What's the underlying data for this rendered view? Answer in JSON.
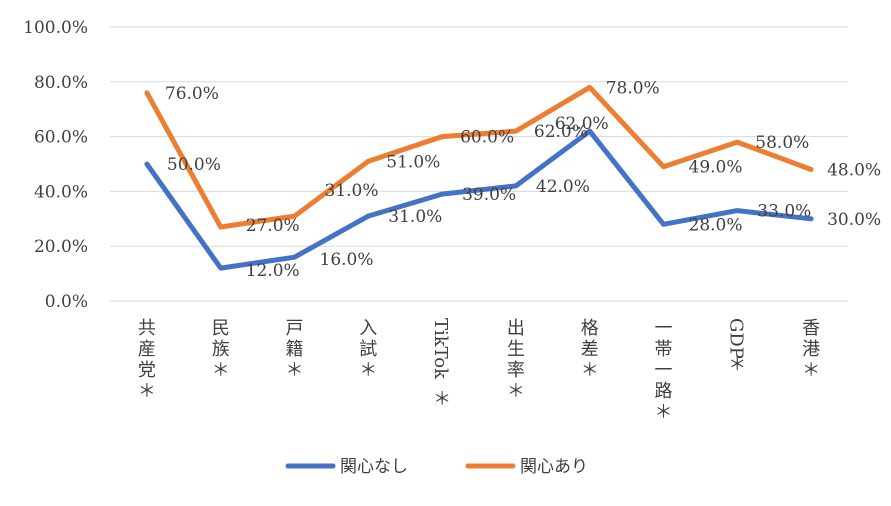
{
  "chart_data": {
    "type": "line",
    "categories": [
      "共産党＊",
      "民族＊",
      "戸籍＊",
      "入試＊",
      "TikTok＊",
      "出生率＊",
      "格差＊",
      "一帯一路＊",
      "GDP＊",
      "香港＊"
    ],
    "series": [
      {
        "name": "関心なし",
        "color": "#4472C4",
        "values": [
          50.0,
          12.0,
          16.0,
          31.0,
          39.0,
          42.0,
          62.0,
          28.0,
          33.0,
          30.0
        ]
      },
      {
        "name": "関心あり",
        "color": "#ED7D31",
        "values": [
          76.0,
          27.0,
          31.0,
          51.0,
          60.0,
          62.0,
          78.0,
          49.0,
          58.0,
          48.0
        ]
      }
    ],
    "ylim": [
      0,
      100
    ],
    "yticks": [
      "0.0%",
      "20.0%",
      "40.0%",
      "60.0%",
      "80.0%",
      "100.0%"
    ],
    "grid": true,
    "legend_position": "bottom",
    "title": "",
    "xlabel": "",
    "ylabel": ""
  }
}
